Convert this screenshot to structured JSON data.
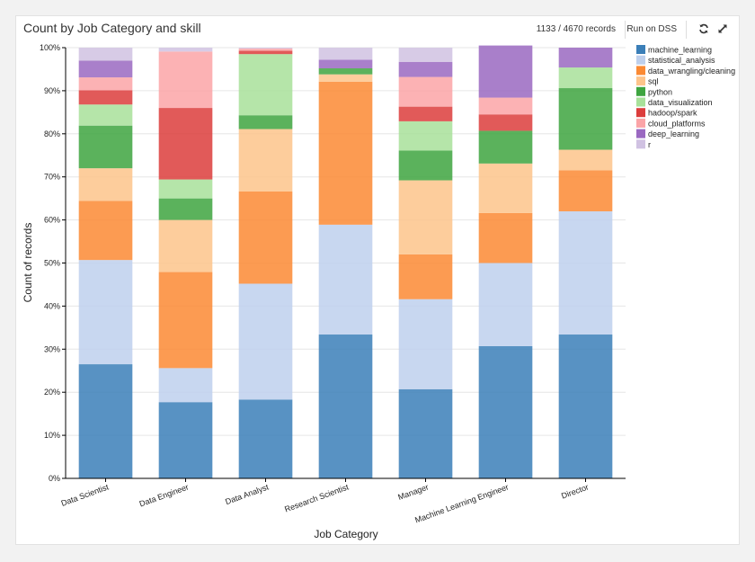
{
  "header": {
    "title": "Count by Job Category and skill",
    "records": "1133 / 4670 records",
    "run_label": "Run on DSS"
  },
  "icons": {
    "refresh": "refresh-icon",
    "expand": "expand-icon"
  },
  "chart_data": {
    "type": "bar",
    "stacked": "percent",
    "xlabel": "Job Category",
    "ylabel": "Count of records",
    "ylim": [
      0,
      100
    ],
    "y_ticks": [
      "0%",
      "10%",
      "20%",
      "30%",
      "40%",
      "50%",
      "60%",
      "70%",
      "80%",
      "90%",
      "100%"
    ],
    "legend_position": "right",
    "categories": [
      "Data Scientist",
      "Data Engineer",
      "Data Analyst",
      "Research Scientist",
      "Manager",
      "Machine Learning Engineer",
      "Director"
    ],
    "series": [
      {
        "name": "machine_learning",
        "color": "#3b7fb8",
        "values": [
          26.5,
          17.7,
          18.3,
          33.4,
          20.7,
          30.7,
          33.4
        ]
      },
      {
        "name": "statistical_analysis",
        "color": "#bed0ed",
        "values": [
          24.2,
          7.9,
          26.9,
          25.5,
          20.9,
          19.3,
          28.6
        ]
      },
      {
        "name": "data_wrangling/cleaning",
        "color": "#fb8a34",
        "values": [
          13.7,
          22.3,
          21.4,
          33.2,
          10.4,
          11.6,
          9.5
        ]
      },
      {
        "name": "sql",
        "color": "#fdc48b",
        "values": [
          7.6,
          12.1,
          14.5,
          1.7,
          17.2,
          11.5,
          4.8
        ]
      },
      {
        "name": "python",
        "color": "#3ea540",
        "values": [
          9.9,
          5.0,
          3.2,
          1.4,
          6.9,
          7.6,
          14.3
        ]
      },
      {
        "name": "data_visualization",
        "color": "#a8e19a",
        "values": [
          4.9,
          4.4,
          14.2,
          0,
          6.8,
          0,
          4.8
        ]
      },
      {
        "name": "hadoop/spark",
        "color": "#dc3d3c",
        "values": [
          3.3,
          16.6,
          0.8,
          0,
          3.4,
          3.8,
          0
        ]
      },
      {
        "name": "cloud_platforms",
        "color": "#fba4a7",
        "values": [
          3.0,
          13.1,
          0.5,
          0,
          6.9,
          3.9,
          0
        ]
      },
      {
        "name": "deep_learning",
        "color": "#9a69c1",
        "values": [
          3.9,
          0,
          0,
          2.0,
          3.5,
          12.1,
          4.6
        ]
      },
      {
        "name": "r",
        "color": "#d0c2e2",
        "values": [
          3.0,
          0.9,
          0.2,
          2.8,
          3.3,
          0,
          0
        ]
      }
    ]
  }
}
